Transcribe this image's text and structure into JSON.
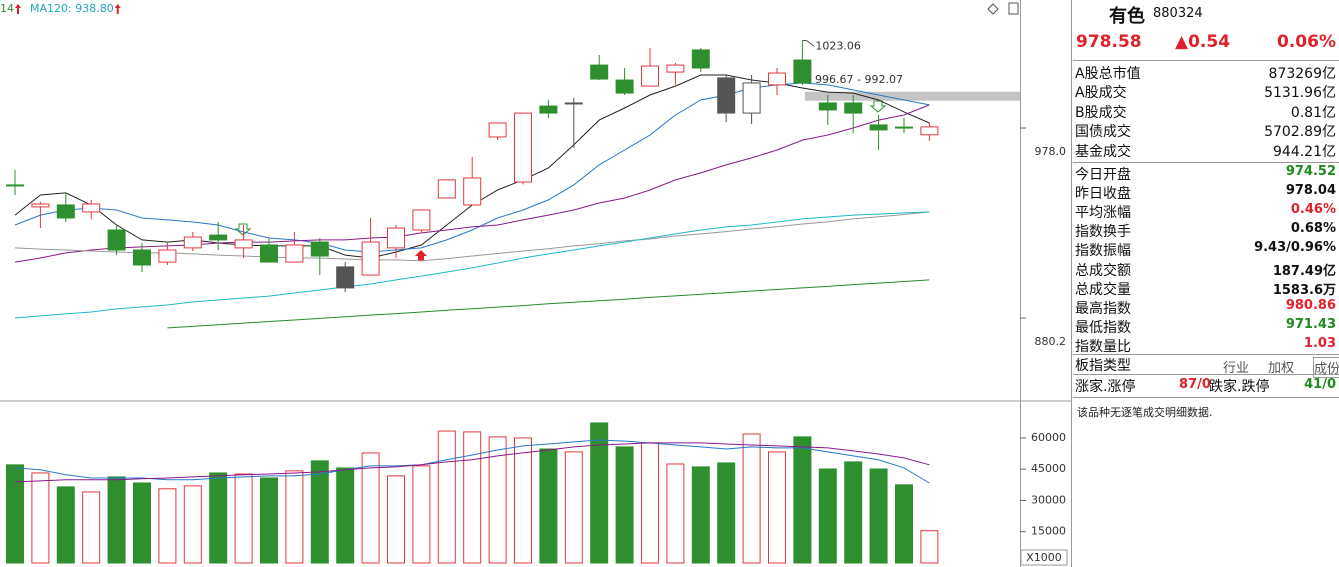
{
  "chart_data": [
    {
      "type": "candlestick",
      "open": [
        948.7,
        937.4,
        938.4,
        934.8,
        925.5,
        915.2,
        909.0,
        916.3,
        922.9,
        916.3,
        917.8,
        909.0,
        919.3,
        906.5,
        902.3,
        916.3,
        925.5,
        942.0,
        938.4,
        973.4,
        950.2,
        989.3,
        990.9,
        1010.4,
        1002.7,
        999.6,
        1006.8,
        1018.2,
        1003.8,
        985.7,
        1000.2,
        1013.0,
        990.9,
        990.9,
        979.6,
        978.5,
        974.52
      ],
      "high": [
        956.4,
        940.0,
        944.6,
        941.0,
        928.1,
        918.8,
        918.8,
        924.5,
        929.6,
        928.1,
        921.4,
        924.5,
        921.4,
        909.0,
        931.7,
        928.1,
        935.8,
        951.3,
        963.1,
        980.6,
        985.7,
        992.4,
        993.5,
        1015.6,
        1008.9,
        1019.2,
        1011.5,
        1019.2,
        1005.3,
        1005.3,
        1008.9,
        1023.06,
        995.0,
        995.0,
        984.7,
        983.2,
        980.86
      ],
      "low": [
        943.5,
        926.5,
        929.6,
        931.0,
        912.6,
        903.9,
        907.5,
        914.7,
        915.2,
        911.1,
        909.0,
        909.0,
        902.3,
        893.6,
        902.3,
        911.1,
        924.5,
        942.0,
        938.4,
        971.8,
        949.0,
        983.2,
        967.7,
        1002.7,
        995.0,
        999.6,
        1000.2,
        1006.8,
        981.1,
        980.1,
        995.0,
        1000.2,
        979.6,
        975.4,
        966.7,
        975.4,
        971.43
      ],
      "close": [
        948.2,
        938.9,
        931.7,
        938.9,
        915.2,
        907.5,
        915.2,
        921.9,
        920.4,
        920.4,
        909.0,
        917.8,
        912.1,
        895.7,
        919.3,
        926.5,
        935.8,
        951.3,
        952.3,
        980.6,
        985.7,
        985.7,
        990.4,
        1003.2,
        996.0,
        1009.9,
        1010.4,
        1008.9,
        985.7,
        1001.2,
        1006.3,
        1001.2,
        987.3,
        985.7,
        977.0,
        978.0,
        978.58
      ],
      "colors": [
        "#2f8f2f",
        "#e0383e",
        "#2f8f2f",
        "#e0383e",
        "#2f8f2f",
        "#2f8f2f",
        "#e0383e",
        "#e0383e",
        "#2f8f2f",
        "#e0383e",
        "#2f8f2f",
        "#e0383e",
        "#2f8f2f",
        "#555555",
        "#e0383e",
        "#e0383e",
        "#e0383e",
        "#e0383e",
        "#e0383e",
        "#e0383e",
        "#e0383e",
        "#2f8f2f",
        "#555555",
        "#2f8f2f",
        "#2f8f2f",
        "#e0383e",
        "#e0383e",
        "#2f8f2f",
        "#555555",
        "#555555",
        "#e0383e",
        "#2f8f2f",
        "#2f8f2f",
        "#2f8f2f",
        "#2f8f2f",
        "#2f8f2f",
        "#e0383e"
      ],
      "lines": [
        {
          "color": "#222222",
          "values": [
            933.2,
            943.5,
            944.6,
            938.4,
            928.1,
            920.4,
            919.3,
            920.4,
            918.8,
            917.8,
            917.3,
            917.3,
            917.3,
            912.6,
            911.1,
            914.2,
            917.8,
            928.1,
            938.4,
            946.1,
            951.3,
            957.4,
            969.3,
            982.1,
            988.3,
            995.0,
            999.6,
            1005.3,
            1005.3,
            1002.7,
            1001.2,
            998.6,
            996.5,
            996.0,
            992.4,
            986.3,
            980.6
          ]
        },
        {
          "color": "#2878c8",
          "values": [
            928.1,
            933.2,
            935.8,
            936.8,
            935.8,
            931.7,
            930.7,
            929.6,
            928.1,
            924.5,
            921.4,
            920.4,
            918.8,
            915.2,
            914.2,
            915.2,
            916.3,
            920.4,
            925.5,
            931.7,
            935.8,
            941.0,
            948.7,
            959.0,
            966.7,
            974.4,
            984.7,
            992.4,
            995.0,
            998.6,
            1000.2,
            1001.2,
            1000.2,
            997.6,
            995.0,
            992.4,
            989.9
          ]
        },
        {
          "color": "#8a1a8a",
          "values": [
            909.0,
            911.1,
            913.7,
            915.2,
            916.3,
            916.8,
            917.3,
            917.8,
            918.8,
            919.3,
            919.3,
            919.9,
            920.4,
            920.4,
            921.4,
            921.9,
            924.0,
            925.5,
            927.1,
            928.1,
            930.7,
            933.2,
            935.8,
            939.4,
            942.0,
            946.1,
            951.3,
            954.9,
            959.0,
            962.6,
            966.7,
            971.8,
            974.4,
            978.0,
            982.1,
            984.7,
            989.9
          ]
        },
        {
          "color": "#999999",
          "values": [
            916.3,
            915.7,
            915.2,
            914.7,
            914.2,
            913.7,
            913.7,
            913.2,
            912.6,
            912.1,
            911.6,
            911.1,
            911.1,
            910.6,
            910.1,
            910.1,
            909.6,
            910.8,
            912.1,
            913.4,
            914.7,
            915.9,
            917.3,
            918.4,
            919.9,
            920.9,
            922.4,
            923.5,
            924.7,
            926.0,
            927.2,
            928.6,
            929.7,
            931.2,
            932.3,
            933.5,
            934.8
          ]
        },
        {
          "color": "#20b8c8",
          "values": [
            880.2,
            881.3,
            882.3,
            883.3,
            884.9,
            885.9,
            886.9,
            888.5,
            889.5,
            890.5,
            891.5,
            893.1,
            894.6,
            896.2,
            897.7,
            899.8,
            901.8,
            903.9,
            906.0,
            908.5,
            911.1,
            913.2,
            915.2,
            917.3,
            919.3,
            921.4,
            923.5,
            925.5,
            927.1,
            928.1,
            929.6,
            931.2,
            932.2,
            933.2,
            933.7,
            934.3,
            934.8
          ]
        },
        {
          "color": "#2a8a2a",
          "values": [
            null,
            null,
            null,
            null,
            null,
            null,
            875.1,
            875.9,
            876.7,
            877.6,
            878.4,
            879.2,
            880.0,
            880.9,
            881.7,
            882.5,
            883.3,
            884.2,
            885.0,
            885.8,
            886.6,
            887.5,
            888.3,
            889.1,
            889.9,
            890.8,
            891.6,
            892.4,
            893.2,
            894.1,
            894.9,
            895.7,
            896.5,
            897.4,
            898.2,
            899.0,
            899.8
          ]
        }
      ],
      "legend": [
        {
          "text": "14",
          "color": "#2f8f2f"
        },
        {
          "text": "MA120: 938.80",
          "color": "#20a8b8"
        }
      ],
      "band": {
        "label": "996.67 - 992.07",
        "range": [
          996.67,
          992.07
        ]
      },
      "ylim": [
        838.0,
        1043.9
      ],
      "yticks": [
        880.2,
        {
          "value": 978,
          "label": "978.0"
        }
      ]
    },
    {
      "type": "bar",
      "values": [
        47100,
        43200,
        36500,
        34100,
        41300,
        38400,
        35600,
        37000,
        43200,
        42700,
        40800,
        44200,
        49000,
        45600,
        52800,
        41800,
        46600,
        63300,
        62900,
        60500,
        60000,
        54700,
        53300,
        67200,
        55700,
        57600,
        47500,
        46100,
        48000,
        61900,
        53300,
        60500,
        45100,
        48500,
        45100,
        37500,
        15500
      ],
      "colors": [
        "#2f8f2f",
        "#e0383e",
        "#2f8f2f",
        "#e0383e",
        "#2f8f2f",
        "#2f8f2f",
        "#e0383e",
        "#e0383e",
        "#2f8f2f",
        "#e0383e",
        "#2f8f2f",
        "#e0383e",
        "#2f8f2f",
        "#2f8f2f",
        "#e0383e",
        "#e0383e",
        "#e0383e",
        "#e0383e",
        "#e0383e",
        "#e0383e",
        "#e0383e",
        "#2f8f2f",
        "#e0383e",
        "#2f8f2f",
        "#2f8f2f",
        "#e0383e",
        "#e0383e",
        "#2f8f2f",
        "#2f8f2f",
        "#e0383e",
        "#e0383e",
        "#2f8f2f",
        "#2f8f2f",
        "#2f8f2f",
        "#2f8f2f",
        "#2f8f2f",
        "#e0383e"
      ],
      "lines": [
        {
          "color": "#2878c8",
          "values": [
            45600,
            44700,
            42300,
            40800,
            40800,
            40800,
            39900,
            39900,
            40800,
            41300,
            41800,
            41800,
            42700,
            44700,
            46600,
            46600,
            47100,
            49500,
            51800,
            54200,
            56200,
            57100,
            58100,
            59000,
            58500,
            57600,
            56600,
            55700,
            54700,
            55700,
            55200,
            55200,
            53300,
            51400,
            49500,
            45600,
            38400
          ]
        },
        {
          "color": "#8a1a8a",
          "values": [
            38900,
            39400,
            39900,
            39900,
            39900,
            40400,
            40800,
            41300,
            41800,
            42300,
            42700,
            43200,
            43700,
            44700,
            45600,
            46100,
            47100,
            48500,
            49500,
            51400,
            52800,
            54200,
            55700,
            56600,
            57100,
            57600,
            57600,
            57600,
            57100,
            56600,
            56200,
            55700,
            55200,
            53800,
            52300,
            50400,
            47100
          ]
        }
      ],
      "unit_label": "X1000",
      "ylim": [
        0,
        75800
      ],
      "yticks": [
        15000,
        30000,
        45000,
        60000
      ]
    }
  ],
  "panel": {
    "name": "有色",
    "code": "880324",
    "price": "978.58",
    "change": "▲0.54",
    "change_pct": "0.06%",
    "rows_top": [
      {
        "label": "A股总市值",
        "value": "873269亿"
      },
      {
        "label": "A股成交",
        "value": "5131.96亿"
      },
      {
        "label": "B股成交",
        "value": "0.81亿"
      },
      {
        "label": "国债成交",
        "value": "5702.89亿"
      },
      {
        "label": "基金成交",
        "value": "944.21亿"
      }
    ],
    "rows": [
      {
        "label": "今日开盘",
        "value": "974.52",
        "color": "green"
      },
      {
        "label": "昨日收盘",
        "value": "978.04",
        "color": "black"
      },
      {
        "label": "平均涨幅",
        "value": "0.46%",
        "color": "red"
      },
      {
        "label": "指数换手",
        "value": "0.68%",
        "color": "black"
      },
      {
        "label": "指数振幅",
        "value": "9.43/0.96%",
        "color": "black"
      },
      {
        "label": "总成交额",
        "value": "187.49亿",
        "color": "black"
      },
      {
        "label": "总成交量",
        "value": "1583.6万",
        "color": "black"
      },
      {
        "label": "最高指数",
        "value": "980.86",
        "color": "red"
      },
      {
        "label": "最低指数",
        "value": "971.43",
        "color": "green"
      },
      {
        "label": "指数量比",
        "value": "1.03",
        "color": "red"
      }
    ],
    "type_row": {
      "label": "板指类型",
      "options": [
        "行业",
        "加权",
        "成份股"
      ]
    },
    "breadth": {
      "up_label": "涨家.涨停",
      "up": "87/0",
      "down_label": "跌家.跌停",
      "down": "41/0"
    },
    "note": "该品种无逐笔成交明细数据."
  }
}
